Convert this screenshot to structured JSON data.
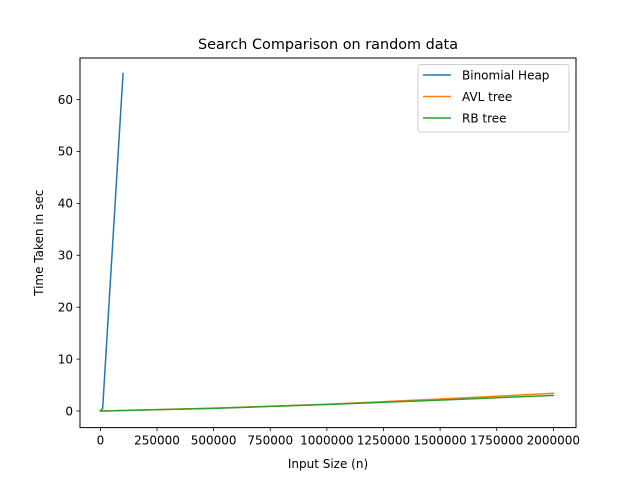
{
  "chart_data": {
    "type": "line",
    "title": "Search Comparison on random data",
    "xlabel": "Input Size (n)",
    "ylabel": "Time Taken in sec",
    "xlim": [
      -90000,
      2100000
    ],
    "ylim": [
      -3.2,
      68
    ],
    "xticks": [
      0,
      250000,
      500000,
      750000,
      1000000,
      1250000,
      1500000,
      1750000,
      2000000
    ],
    "xtick_labels": [
      "0",
      "250000",
      "500000",
      "750000",
      "1000000",
      "1250000",
      "1500000",
      "1750000",
      "2000000"
    ],
    "yticks": [
      0,
      10,
      20,
      30,
      40,
      50,
      60
    ],
    "ytick_labels": [
      "0",
      "10",
      "20",
      "30",
      "40",
      "50",
      "60"
    ],
    "grid": false,
    "legend_position": "top-right",
    "series": [
      {
        "name": "Binomial Heap",
        "color": "#1f77b4",
        "x": [
          0,
          10000,
          100000
        ],
        "y": [
          0,
          0.5,
          65
        ]
      },
      {
        "name": "AVL tree",
        "color": "#ff7f0e",
        "x": [
          0,
          10000,
          100000,
          500000,
          1000000,
          1500000,
          2000000
        ],
        "y": [
          0,
          0.01,
          0.1,
          0.55,
          1.3,
          2.3,
          3.4
        ]
      },
      {
        "name": "RB tree",
        "color": "#2ca02c",
        "x": [
          0,
          10000,
          100000,
          500000,
          1000000,
          1500000,
          2000000
        ],
        "y": [
          0,
          0.01,
          0.1,
          0.5,
          1.25,
          2.1,
          3.0
        ]
      }
    ]
  }
}
